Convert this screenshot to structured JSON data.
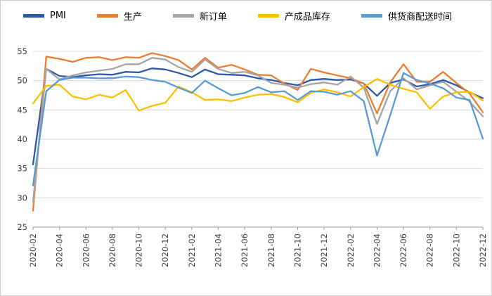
{
  "chart_data": {
    "type": "line",
    "title": "",
    "xlabel": "",
    "ylabel": "",
    "ylim": [
      25,
      55
    ],
    "y_ticks": [
      25,
      30,
      35,
      40,
      45,
      50,
      55
    ],
    "grid": true,
    "legend_position": "top",
    "x": [
      "2020-02",
      "2020-03",
      "2020-04",
      "2020-05",
      "2020-06",
      "2020-07",
      "2020-08",
      "2020-09",
      "2020-10",
      "2020-11",
      "2020-12",
      "2021-01",
      "2021-02",
      "2021-03",
      "2021-04",
      "2021-05",
      "2021-06",
      "2021-07",
      "2021-08",
      "2021-09",
      "2021-10",
      "2021-11",
      "2021-12",
      "2022-01",
      "2022-02",
      "2022-03",
      "2022-04",
      "2022-05",
      "2022-06",
      "2022-07",
      "2022-08",
      "2022-09",
      "2022-10",
      "2022-11",
      "2022-12"
    ],
    "x_tick_labels": [
      "2020-02",
      "2020-04",
      "2020-06",
      "2020-08",
      "2020-10",
      "2020-12",
      "2021-02",
      "2021-04",
      "2021-06",
      "2021-08",
      "2021-10",
      "2021-12",
      "2022-02",
      "2022-04",
      "2022-06",
      "2022-08",
      "2022-10",
      "2022-12"
    ],
    "series": [
      {
        "name": "PMI",
        "color": "#2E59A8",
        "values": [
          35.7,
          52.0,
          50.8,
          50.6,
          50.9,
          51.1,
          51.0,
          51.5,
          51.4,
          52.1,
          51.9,
          51.3,
          50.6,
          51.9,
          51.1,
          51.0,
          50.9,
          50.4,
          50.1,
          49.6,
          49.2,
          50.1,
          50.3,
          50.1,
          50.2,
          49.5,
          47.4,
          49.6,
          50.2,
          49.0,
          49.4,
          50.1,
          49.2,
          48.0,
          47.0
        ]
      },
      {
        "name": "生产",
        "color": "#ED7D31",
        "values": [
          27.8,
          54.1,
          53.7,
          53.2,
          53.9,
          54.0,
          53.5,
          54.0,
          53.9,
          54.7,
          54.2,
          53.5,
          51.9,
          53.9,
          52.2,
          52.7,
          51.9,
          51.0,
          50.9,
          49.5,
          48.4,
          52.0,
          51.4,
          50.9,
          50.4,
          49.5,
          44.4,
          49.7,
          52.8,
          49.8,
          49.8,
          51.5,
          49.6,
          47.8,
          44.6
        ]
      },
      {
        "name": "新订单",
        "color": "#A5A5A5",
        "values": [
          29.3,
          52.0,
          50.2,
          50.9,
          51.4,
          51.7,
          52.0,
          52.8,
          52.8,
          53.9,
          53.6,
          52.3,
          51.5,
          53.6,
          52.0,
          51.3,
          51.5,
          50.9,
          49.6,
          49.3,
          48.8,
          49.4,
          49.7,
          49.3,
          50.7,
          48.8,
          42.6,
          48.2,
          50.4,
          48.5,
          49.2,
          49.8,
          48.1,
          46.4,
          43.9
        ]
      },
      {
        "name": "产成品库存",
        "color": "#FFC000",
        "values": [
          46.1,
          49.1,
          49.3,
          47.3,
          46.8,
          47.6,
          47.1,
          48.4,
          44.9,
          45.7,
          46.2,
          49.0,
          48.0,
          46.7,
          46.8,
          46.5,
          47.1,
          47.6,
          47.7,
          47.2,
          46.3,
          47.9,
          48.5,
          48.0,
          47.3,
          48.9,
          50.3,
          49.3,
          48.6,
          48.0,
          45.2,
          47.3,
          48.0,
          48.1,
          46.6
        ]
      },
      {
        "name": "供货商配送时间",
        "color": "#5B9BD5",
        "values": [
          32.1,
          48.2,
          50.1,
          50.5,
          50.5,
          50.4,
          50.4,
          50.7,
          50.6,
          50.1,
          49.8,
          48.8,
          47.9,
          50.0,
          48.7,
          47.5,
          47.9,
          48.9,
          48.0,
          48.2,
          46.7,
          48.2,
          48.1,
          47.6,
          48.2,
          46.5,
          37.2,
          44.1,
          51.3,
          50.1,
          49.5,
          48.7,
          47.1,
          46.7,
          40.1
        ]
      }
    ],
    "axis_color": "#9b9b9b",
    "gridline_color": "#d9d9d9",
    "tick_label_color": "#404040"
  }
}
